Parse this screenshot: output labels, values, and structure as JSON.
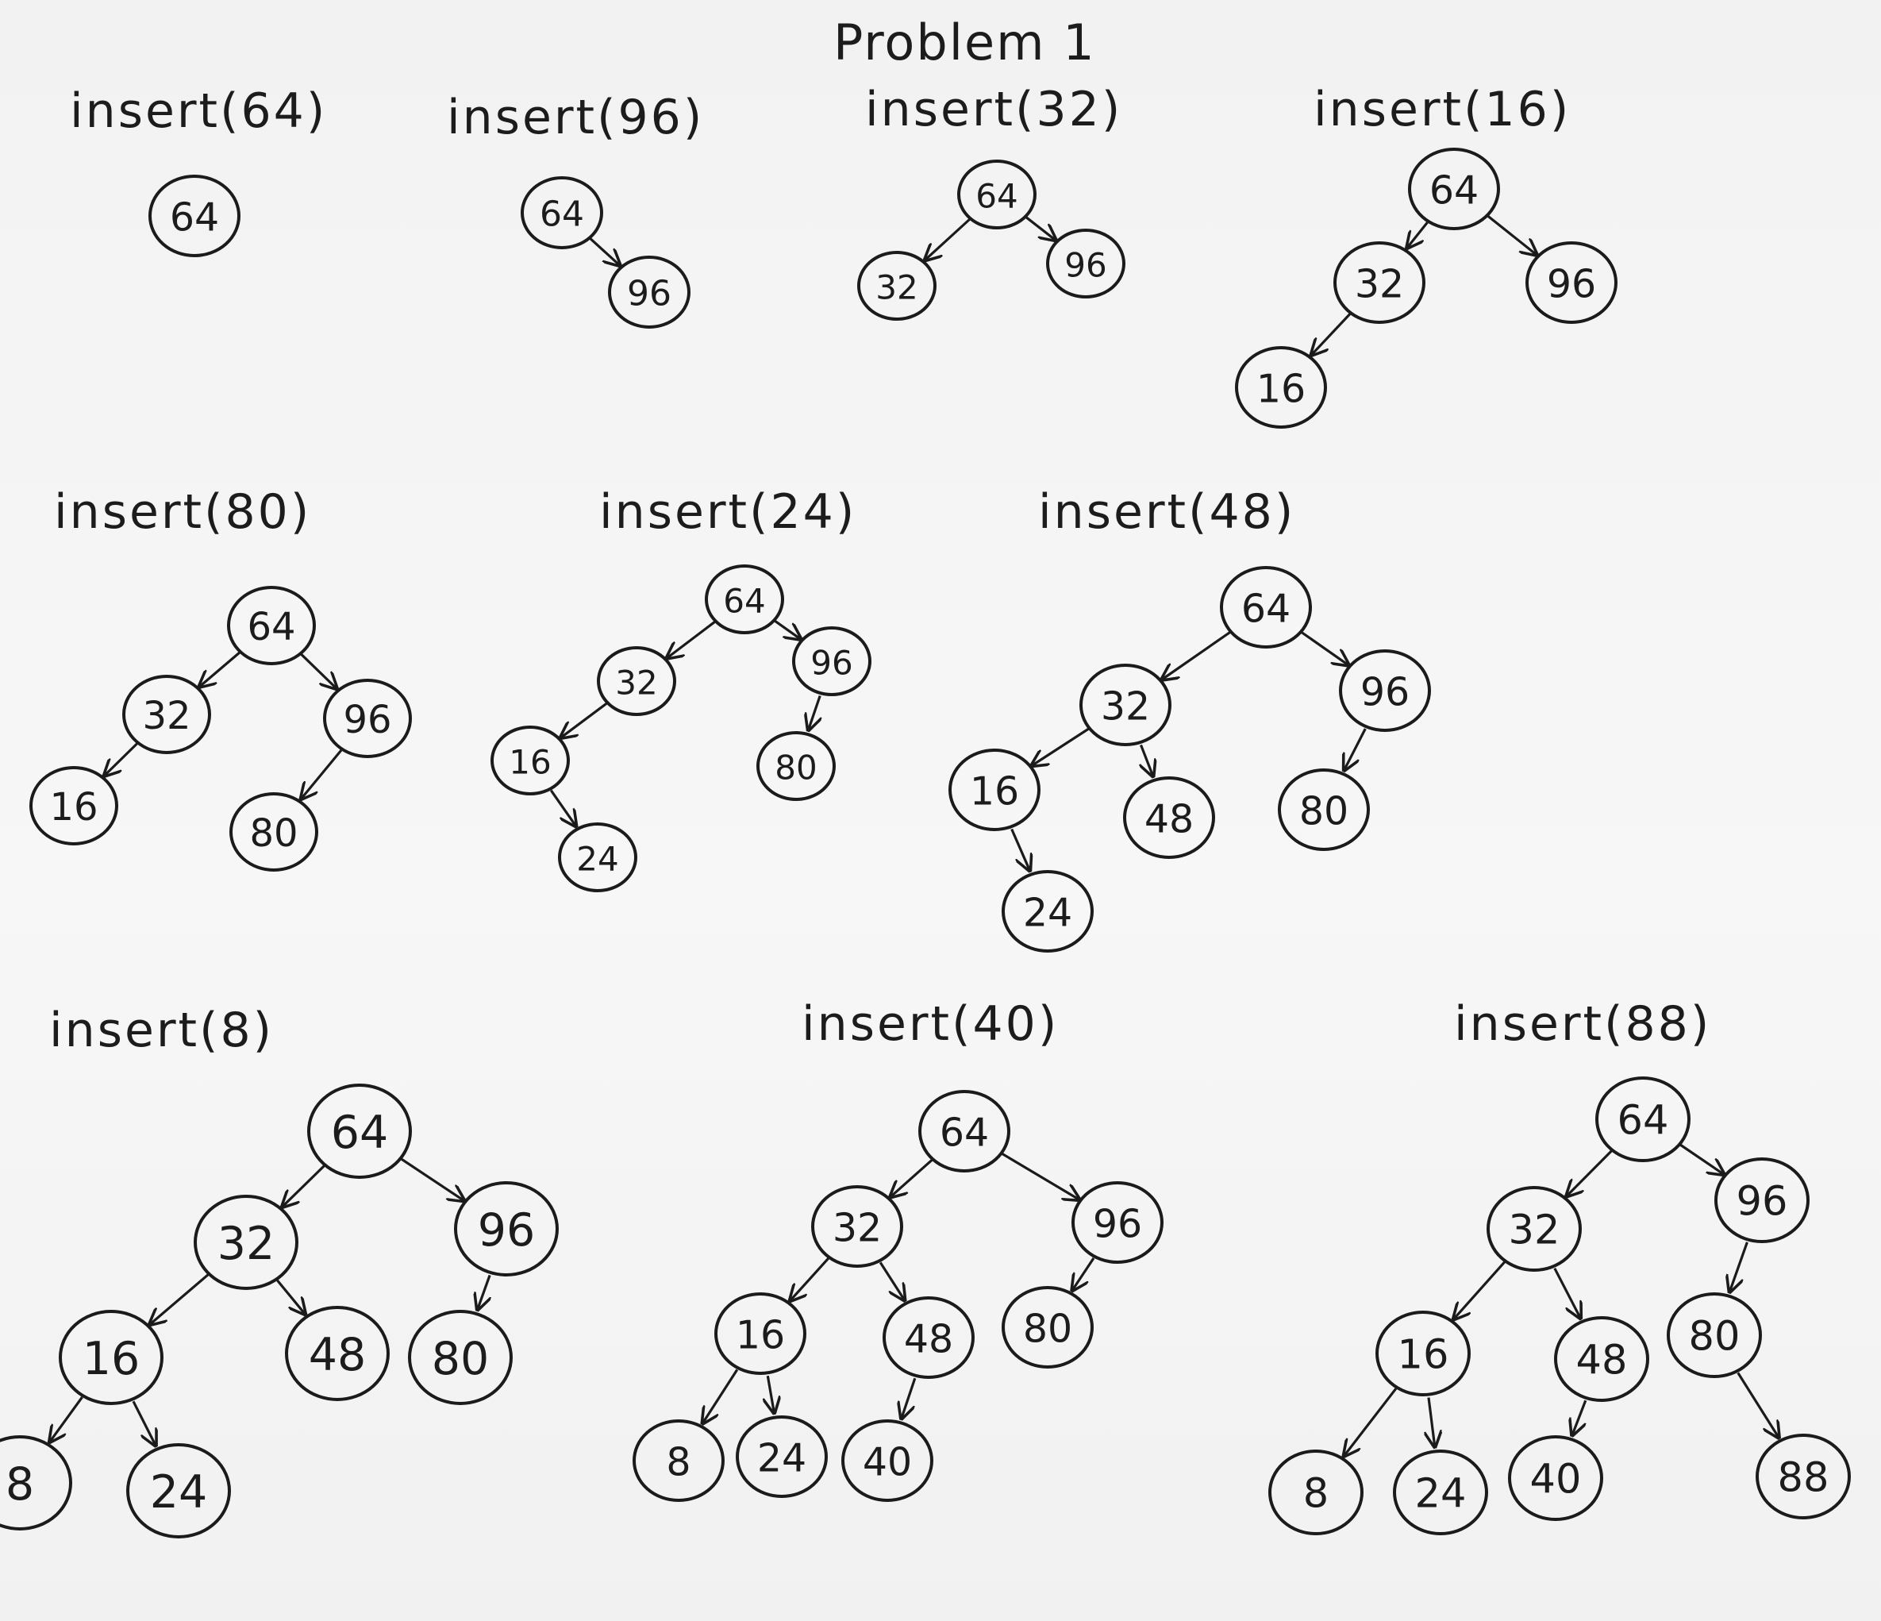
{
  "title": "Problem 1",
  "panels": [
    {
      "label": "insert(64)",
      "nodes": [
        {
          "id": "n64",
          "value": "64"
        }
      ],
      "edges": []
    },
    {
      "label": "insert(96)",
      "nodes": [
        {
          "id": "n64",
          "value": "64"
        },
        {
          "id": "n96",
          "value": "96"
        }
      ],
      "edges": [
        [
          "n64",
          "n96"
        ]
      ]
    },
    {
      "label": "insert(32)",
      "nodes": [
        {
          "id": "n64",
          "value": "64"
        },
        {
          "id": "n32",
          "value": "32"
        },
        {
          "id": "n96",
          "value": "96"
        }
      ],
      "edges": [
        [
          "n64",
          "n32"
        ],
        [
          "n64",
          "n96"
        ]
      ]
    },
    {
      "label": "insert(16)",
      "nodes": [
        {
          "id": "n64",
          "value": "64"
        },
        {
          "id": "n32",
          "value": "32"
        },
        {
          "id": "n96",
          "value": "96"
        },
        {
          "id": "n16",
          "value": "16"
        }
      ],
      "edges": [
        [
          "n64",
          "n32"
        ],
        [
          "n64",
          "n96"
        ],
        [
          "n32",
          "n16"
        ]
      ]
    },
    {
      "label": "insert(80)",
      "nodes": [
        {
          "id": "n64",
          "value": "64"
        },
        {
          "id": "n32",
          "value": "32"
        },
        {
          "id": "n96",
          "value": "96"
        },
        {
          "id": "n16",
          "value": "16"
        },
        {
          "id": "n80",
          "value": "80"
        }
      ],
      "edges": [
        [
          "n64",
          "n32"
        ],
        [
          "n64",
          "n96"
        ],
        [
          "n32",
          "n16"
        ],
        [
          "n96",
          "n80"
        ]
      ]
    },
    {
      "label": "insert(24)",
      "nodes": [
        {
          "id": "n64",
          "value": "64"
        },
        {
          "id": "n32",
          "value": "32"
        },
        {
          "id": "n96",
          "value": "96"
        },
        {
          "id": "n16",
          "value": "16"
        },
        {
          "id": "n80",
          "value": "80"
        },
        {
          "id": "n24",
          "value": "24"
        }
      ],
      "edges": [
        [
          "n64",
          "n32"
        ],
        [
          "n64",
          "n96"
        ],
        [
          "n32",
          "n16"
        ],
        [
          "n96",
          "n80"
        ],
        [
          "n16",
          "n24"
        ]
      ]
    },
    {
      "label": "insert(48)",
      "nodes": [
        {
          "id": "n64",
          "value": "64"
        },
        {
          "id": "n32",
          "value": "32"
        },
        {
          "id": "n96",
          "value": "96"
        },
        {
          "id": "n16",
          "value": "16"
        },
        {
          "id": "n48",
          "value": "48"
        },
        {
          "id": "n80",
          "value": "80"
        },
        {
          "id": "n24",
          "value": "24"
        }
      ],
      "edges": [
        [
          "n64",
          "n32"
        ],
        [
          "n64",
          "n96"
        ],
        [
          "n32",
          "n16"
        ],
        [
          "n32",
          "n48"
        ],
        [
          "n96",
          "n80"
        ],
        [
          "n16",
          "n24"
        ]
      ]
    },
    {
      "label": "insert(8)",
      "nodes": [
        {
          "id": "n64",
          "value": "64"
        },
        {
          "id": "n32",
          "value": "32"
        },
        {
          "id": "n96",
          "value": "96"
        },
        {
          "id": "n16",
          "value": "16"
        },
        {
          "id": "n48",
          "value": "48"
        },
        {
          "id": "n80",
          "value": "80"
        },
        {
          "id": "n8",
          "value": "8"
        },
        {
          "id": "n24",
          "value": "24"
        }
      ],
      "edges": [
        [
          "n64",
          "n32"
        ],
        [
          "n64",
          "n96"
        ],
        [
          "n32",
          "n16"
        ],
        [
          "n32",
          "n48"
        ],
        [
          "n96",
          "n80"
        ],
        [
          "n16",
          "n8"
        ],
        [
          "n16",
          "n24"
        ]
      ]
    },
    {
      "label": "insert(40)",
      "nodes": [
        {
          "id": "n64",
          "value": "64"
        },
        {
          "id": "n32",
          "value": "32"
        },
        {
          "id": "n96",
          "value": "96"
        },
        {
          "id": "n16",
          "value": "16"
        },
        {
          "id": "n48",
          "value": "48"
        },
        {
          "id": "n80",
          "value": "80"
        },
        {
          "id": "n8",
          "value": "8"
        },
        {
          "id": "n24",
          "value": "24"
        },
        {
          "id": "n40",
          "value": "40"
        }
      ],
      "edges": [
        [
          "n64",
          "n32"
        ],
        [
          "n64",
          "n96"
        ],
        [
          "n32",
          "n16"
        ],
        [
          "n32",
          "n48"
        ],
        [
          "n96",
          "n80"
        ],
        [
          "n16",
          "n8"
        ],
        [
          "n16",
          "n24"
        ],
        [
          "n48",
          "n40"
        ]
      ]
    },
    {
      "label": "insert(88)",
      "nodes": [
        {
          "id": "n64",
          "value": "64"
        },
        {
          "id": "n32",
          "value": "32"
        },
        {
          "id": "n96",
          "value": "96"
        },
        {
          "id": "n16",
          "value": "16"
        },
        {
          "id": "n48",
          "value": "48"
        },
        {
          "id": "n80",
          "value": "80"
        },
        {
          "id": "n8",
          "value": "8"
        },
        {
          "id": "n24",
          "value": "24"
        },
        {
          "id": "n40",
          "value": "40"
        },
        {
          "id": "n88",
          "value": "88"
        }
      ],
      "edges": [
        [
          "n64",
          "n32"
        ],
        [
          "n64",
          "n96"
        ],
        [
          "n32",
          "n16"
        ],
        [
          "n32",
          "n48"
        ],
        [
          "n96",
          "n80"
        ],
        [
          "n16",
          "n8"
        ],
        [
          "n16",
          "n24"
        ],
        [
          "n48",
          "n40"
        ],
        [
          "n80",
          "n88"
        ]
      ]
    }
  ]
}
